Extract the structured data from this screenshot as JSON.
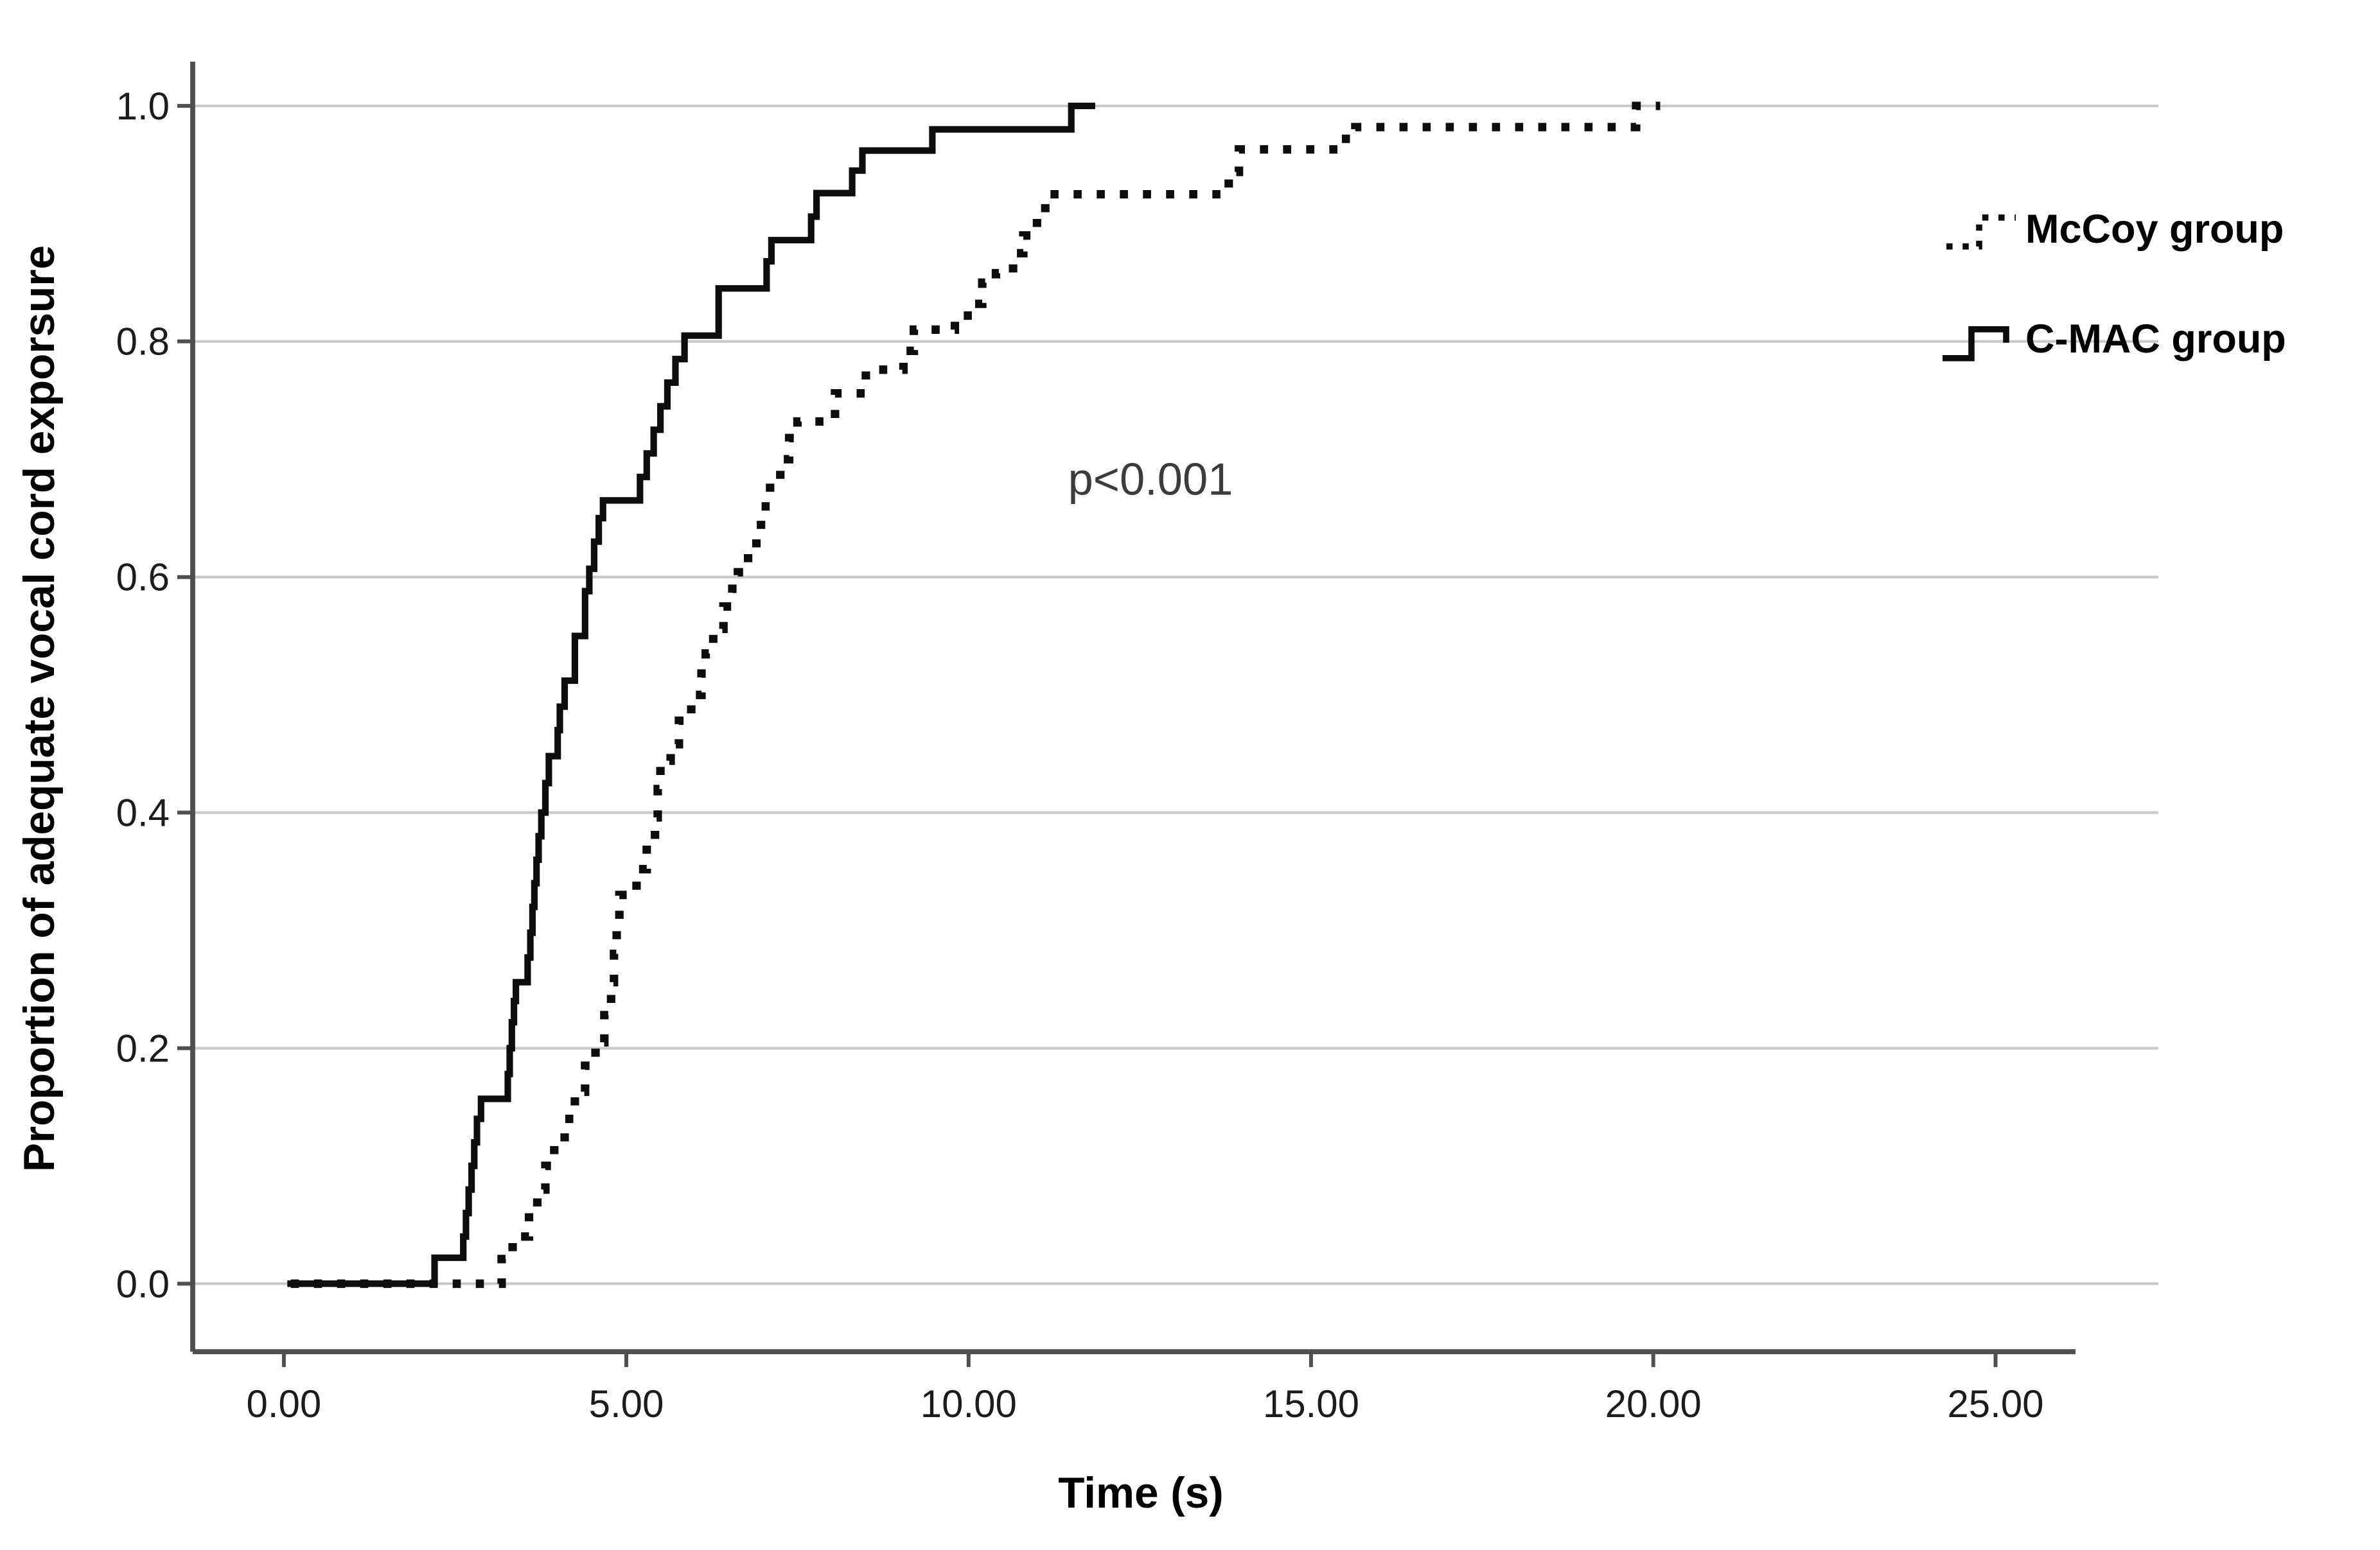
{
  "chart_data": {
    "type": "line",
    "subtype": "kaplan-meier-step",
    "title": "",
    "xlabel": "Time (s)",
    "ylabel": "Proportion of adequate vocal cord exporsure",
    "xlim": [
      -1.35,
      26.3
    ],
    "ylim": [
      -0.09,
      1.09
    ],
    "grid": "horizontal",
    "legend_position": "top-right",
    "x_ticks": [
      0,
      5,
      10,
      15,
      20,
      25
    ],
    "x_tick_labels": [
      "0.00",
      "5.00",
      "10.00",
      "15.00",
      "20.00",
      "25.00"
    ],
    "y_ticks": [
      0.0,
      0.2,
      0.4,
      0.6,
      0.8,
      1.0
    ],
    "y_tick_labels": [
      "0.0",
      "0.2",
      "0.4",
      "0.6",
      "0.8",
      "1.0"
    ],
    "annotation": {
      "text": "p<0.001",
      "x": 12.6,
      "y": 0.655
    },
    "series": [
      {
        "name": "McCoy group",
        "line_style": "dotted",
        "color": "#0d0d0d",
        "step": "post",
        "points": [
          [
            0.1,
            0.0
          ],
          [
            3.18,
            0.021
          ],
          [
            3.34,
            0.04
          ],
          [
            3.58,
            0.06
          ],
          [
            3.7,
            0.08
          ],
          [
            3.82,
            0.1
          ],
          [
            3.95,
            0.12
          ],
          [
            4.1,
            0.14
          ],
          [
            4.25,
            0.163
          ],
          [
            4.4,
            0.185
          ],
          [
            4.55,
            0.205
          ],
          [
            4.68,
            0.228
          ],
          [
            4.78,
            0.256
          ],
          [
            4.82,
            0.28
          ],
          [
            4.86,
            0.304
          ],
          [
            4.9,
            0.33
          ],
          [
            5.15,
            0.352
          ],
          [
            5.3,
            0.372
          ],
          [
            5.42,
            0.396
          ],
          [
            5.46,
            0.42
          ],
          [
            5.5,
            0.444
          ],
          [
            5.65,
            0.458
          ],
          [
            5.77,
            0.478
          ],
          [
            5.95,
            0.5
          ],
          [
            6.1,
            0.518
          ],
          [
            6.16,
            0.535
          ],
          [
            6.27,
            0.556
          ],
          [
            6.42,
            0.575
          ],
          [
            6.55,
            0.59
          ],
          [
            6.63,
            0.604
          ],
          [
            6.78,
            0.62
          ],
          [
            6.9,
            0.64
          ],
          [
            6.97,
            0.66
          ],
          [
            7.1,
            0.682
          ],
          [
            7.25,
            0.7
          ],
          [
            7.38,
            0.718
          ],
          [
            7.5,
            0.732
          ],
          [
            8.05,
            0.756
          ],
          [
            8.5,
            0.776
          ],
          [
            9.05,
            0.792
          ],
          [
            9.2,
            0.81
          ],
          [
            9.8,
            0.822
          ],
          [
            10.05,
            0.832
          ],
          [
            10.2,
            0.85
          ],
          [
            10.4,
            0.858
          ],
          [
            10.65,
            0.875
          ],
          [
            10.8,
            0.89
          ],
          [
            11.0,
            0.906
          ],
          [
            11.12,
            0.925
          ],
          [
            13.8,
            0.944
          ],
          [
            13.95,
            0.963
          ],
          [
            15.45,
            0.972
          ],
          [
            15.65,
            0.982
          ],
          [
            19.75,
            1.0
          ],
          [
            20.1,
            1.0
          ]
        ]
      },
      {
        "name": "C-MAC group",
        "line_style": "solid",
        "color": "#0d0d0d",
        "step": "post",
        "points": [
          [
            0.05,
            0.0
          ],
          [
            2.2,
            0.022
          ],
          [
            2.62,
            0.04
          ],
          [
            2.66,
            0.06
          ],
          [
            2.7,
            0.08
          ],
          [
            2.74,
            0.1
          ],
          [
            2.78,
            0.12
          ],
          [
            2.82,
            0.14
          ],
          [
            2.88,
            0.157
          ],
          [
            3.27,
            0.178
          ],
          [
            3.3,
            0.2
          ],
          [
            3.33,
            0.222
          ],
          [
            3.36,
            0.24
          ],
          [
            3.39,
            0.256
          ],
          [
            3.56,
            0.277
          ],
          [
            3.6,
            0.298
          ],
          [
            3.63,
            0.32
          ],
          [
            3.66,
            0.34
          ],
          [
            3.69,
            0.36
          ],
          [
            3.72,
            0.38
          ],
          [
            3.76,
            0.4
          ],
          [
            3.82,
            0.425
          ],
          [
            3.87,
            0.448
          ],
          [
            4.0,
            0.47
          ],
          [
            4.03,
            0.49
          ],
          [
            4.1,
            0.512
          ],
          [
            4.25,
            0.55
          ],
          [
            4.4,
            0.588
          ],
          [
            4.46,
            0.607
          ],
          [
            4.53,
            0.63
          ],
          [
            4.6,
            0.65
          ],
          [
            4.66,
            0.665
          ],
          [
            5.2,
            0.685
          ],
          [
            5.3,
            0.705
          ],
          [
            5.4,
            0.725
          ],
          [
            5.5,
            0.745
          ],
          [
            5.6,
            0.765
          ],
          [
            5.72,
            0.785
          ],
          [
            5.85,
            0.805
          ],
          [
            6.35,
            0.845
          ],
          [
            7.05,
            0.868
          ],
          [
            7.12,
            0.886
          ],
          [
            7.7,
            0.906
          ],
          [
            7.78,
            0.926
          ],
          [
            8.3,
            0.945
          ],
          [
            8.45,
            0.962
          ],
          [
            9.47,
            0.98
          ],
          [
            11.5,
            1.0
          ],
          [
            11.85,
            1.0
          ]
        ]
      }
    ]
  },
  "axes": {
    "x_label": "Time (s)",
    "y_label": "Proportion of adequate vocal cord exporsure"
  },
  "annotation": {
    "p_value": "p<0.001"
  },
  "legend": {
    "items": [
      {
        "label": "McCoy group",
        "style": "dotted"
      },
      {
        "label": "C-MAC group",
        "style": "solid"
      }
    ]
  },
  "colors": {
    "curve": "#0d0d0d",
    "gridline": "#c9c9c9",
    "spine": "#4f4f4f",
    "background": "#ffffff",
    "annotation_text": "#3c3c3c"
  }
}
